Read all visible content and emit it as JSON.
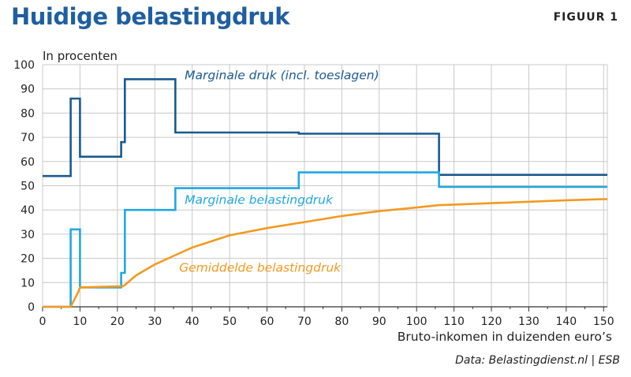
{
  "header": {
    "title": "Huidige belastingdruk",
    "figure_label": "FIGUUR 1"
  },
  "source": "Data: Belastingdienst.nl | ESB",
  "colors": {
    "marginale_druk": "#1a5a8f",
    "marginale_belastingdruk": "#22a8e0",
    "gemiddelde_belastingdruk": "#f39a1e",
    "title": "#1f5fa0",
    "grid": "#c8c8c8"
  },
  "chart_data": {
    "type": "line",
    "ylabel": "In procenten",
    "xlabel": "Bruto-inkomen in duizenden euro’s",
    "xlim": [
      0,
      151
    ],
    "ylim": [
      0,
      100
    ],
    "xticks": [
      0,
      10,
      20,
      30,
      40,
      50,
      60,
      70,
      80,
      90,
      100,
      110,
      120,
      130,
      140,
      150
    ],
    "yticks": [
      0,
      10,
      20,
      30,
      40,
      50,
      60,
      70,
      80,
      90,
      100
    ],
    "grid": true,
    "series": [
      {
        "name": "Marginale druk (incl. toeslagen)",
        "color": "#1a5a8f",
        "step": true,
        "x": [
          0,
          7.5,
          7.5,
          10,
          10,
          21,
          21,
          22,
          22,
          35.5,
          35.5,
          68.5,
          68.5,
          106,
          106,
          151
        ],
        "y": [
          54,
          54,
          86,
          86,
          62,
          62,
          68,
          68,
          94,
          94,
          72,
          72,
          71.5,
          71.5,
          54.5,
          54.5
        ]
      },
      {
        "name": "Marginale belastingdruk",
        "color": "#22a8e0",
        "step": true,
        "x": [
          0,
          7.5,
          7.5,
          10,
          10,
          21,
          21,
          22,
          22,
          35.5,
          35.5,
          68.5,
          68.5,
          106,
          106,
          151
        ],
        "y": [
          0,
          0,
          32,
          32,
          8,
          8,
          14,
          14,
          40,
          40,
          49,
          49,
          55.5,
          55.5,
          49.5,
          49.5
        ]
      },
      {
        "name": "Gemiddelde belastingdruk",
        "color": "#f39a1e",
        "step": false,
        "x": [
          0,
          7.5,
          8.5,
          9.5,
          10,
          21.5,
          22,
          25,
          30,
          35,
          40,
          50,
          60,
          70,
          80,
          90,
          100,
          106,
          110,
          120,
          130,
          140,
          151
        ],
        "y": [
          0,
          0,
          3,
          6,
          8,
          8.5,
          9,
          13,
          17.5,
          21,
          24.5,
          29.5,
          32.5,
          35,
          37.5,
          39.5,
          41,
          42,
          42.2,
          42.8,
          43.4,
          44,
          44.5
        ]
      }
    ],
    "annotations": [
      {
        "text": "Marginale druk (incl. toeslagen)",
        "x": 38,
        "y": 94,
        "color": "#1a5a8f"
      },
      {
        "text": "Marginale belastingdruk",
        "x": 38,
        "y": 42.5,
        "color": "#22a8e0"
      },
      {
        "text": "Gemiddelde belastingdruk",
        "x": 36.5,
        "y": 14.5,
        "color": "#f39a1e"
      }
    ]
  }
}
